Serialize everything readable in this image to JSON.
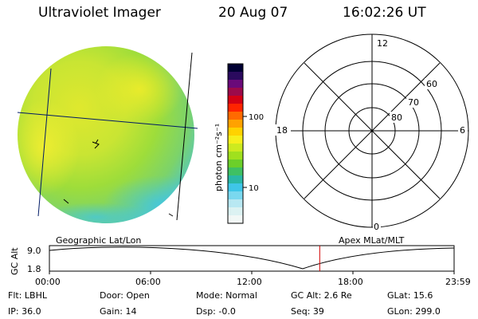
{
  "header": {
    "instrument": "Ultraviolet Imager",
    "date": "20 Aug 07",
    "time": "16:02:26 UT"
  },
  "colorbar": {
    "unit_label": "photon cm⁻²s⁻¹",
    "scale": "log",
    "tick_labels": [
      "100",
      "10"
    ],
    "colors": [
      "#000033",
      "#2a0a5e",
      "#6a0a7a",
      "#9c0a4a",
      "#d40014",
      "#ff2400",
      "#ff6a00",
      "#ffa200",
      "#ffd200",
      "#f6ef1c",
      "#cdea1f",
      "#a0e01e",
      "#6ccf2a",
      "#3fc063",
      "#2ab8a6",
      "#3fc6e8",
      "#7ad8ef",
      "#b8e8f2",
      "#dcf2f2",
      "#f2f8f6"
    ]
  },
  "image_panel": {
    "projection_label": "Geographic Lat/Lon"
  },
  "polar_plot": {
    "projection_label": "Apex MLat/MLT",
    "mlt_labels": [
      "12",
      "18",
      "6",
      "0"
    ],
    "lat_labels": [
      "60",
      "70",
      "80"
    ]
  },
  "timeline": {
    "axis_label": "GC Alt",
    "y_labels": [
      "9.0",
      "1.8"
    ],
    "x_labels": [
      "00:00",
      "06:00",
      "12:00",
      "18:00",
      "23:59"
    ],
    "current_time_fraction": 0.668
  },
  "info": {
    "filter": "Flt: LBHL",
    "ip": "IP: 36.0",
    "door": "Door: Open",
    "gain": "Gain: 14",
    "mode": "Mode: Normal",
    "dsp": "Dsp:    -0.0",
    "gc_alt": "GC Alt: 2.6 Re",
    "seq": "Seq: 39",
    "glat": "GLat:  15.6",
    "glon": "GLon: 299.0"
  }
}
